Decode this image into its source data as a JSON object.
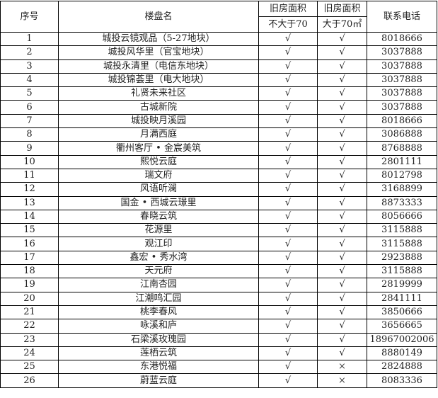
{
  "headers": {
    "index": "序号",
    "name": "楼盘名",
    "area_small_top": "旧房面积",
    "area_small_bottom": "不大于70",
    "area_large_top": "旧房面积",
    "area_large_bottom": "大于70㎡",
    "phone": "联系电话"
  },
  "rows": [
    {
      "no": "1",
      "name": "城投云镜观品（5-27地块）",
      "small": "√",
      "large": "√",
      "phone": "8018666"
    },
    {
      "no": "2",
      "name": "城投风华里（官宝地块）",
      "small": "√",
      "large": "√",
      "phone": "3037888"
    },
    {
      "no": "3",
      "name": "城投永清里（电信东地块）",
      "small": "√",
      "large": "√",
      "phone": "3037888"
    },
    {
      "no": "4",
      "name": "城投锦荟里（电大地块）",
      "small": "√",
      "large": "√",
      "phone": "3037888"
    },
    {
      "no": "5",
      "name": "礼贤未来社区",
      "small": "√",
      "large": "√",
      "phone": "3037888"
    },
    {
      "no": "6",
      "name": "古城新院",
      "small": "√",
      "large": "√",
      "phone": "3037888"
    },
    {
      "no": "7",
      "name": "城投映月溪园",
      "small": "√",
      "large": "√",
      "phone": "8018666"
    },
    {
      "no": "8",
      "name": "月满西庭",
      "small": "√",
      "large": "√",
      "phone": "3086888"
    },
    {
      "no": "9",
      "name": "衢州客厅 • 金宸美筑",
      "small": "√",
      "large": "√",
      "phone": "8768888"
    },
    {
      "no": "10",
      "name": "熙悦云庭",
      "small": "√",
      "large": "√",
      "phone": "2801111"
    },
    {
      "no": "11",
      "name": "瑞文府",
      "small": "√",
      "large": "√",
      "phone": "8012798"
    },
    {
      "no": "12",
      "name": "风语听澜",
      "small": "√",
      "large": "√",
      "phone": "3168899"
    },
    {
      "no": "13",
      "name": "国金 • 西城云璟里",
      "small": "√",
      "large": "√",
      "phone": "8873333"
    },
    {
      "no": "14",
      "name": "春晓云筑",
      "small": "√",
      "large": "√",
      "phone": "8056666"
    },
    {
      "no": "15",
      "name": "花源里",
      "small": "√",
      "large": "√",
      "phone": "3115888"
    },
    {
      "no": "16",
      "name": "观江印",
      "small": "√",
      "large": "√",
      "phone": "3115888"
    },
    {
      "no": "17",
      "name": "鑫宏 • 秀水湾",
      "small": "√",
      "large": "√",
      "phone": "2923888"
    },
    {
      "no": "18",
      "name": "天元府",
      "small": "√",
      "large": "√",
      "phone": "3115888"
    },
    {
      "no": "19",
      "name": "江南杏园",
      "small": "√",
      "large": "√",
      "phone": "2819999"
    },
    {
      "no": "20",
      "name": "江潮鸣汇园",
      "small": "√",
      "large": "√",
      "phone": "2841111"
    },
    {
      "no": "21",
      "name": "桃李春风",
      "small": "√",
      "large": "√",
      "phone": "3850666"
    },
    {
      "no": "22",
      "name": "咏溪和庐",
      "small": "√",
      "large": "√",
      "phone": "3656665"
    },
    {
      "no": "23",
      "name": "石梁溪玫瑰园",
      "small": "√",
      "large": "√",
      "phone": "18967002006"
    },
    {
      "no": "24",
      "name": "莲栖云筑",
      "small": "√",
      "large": "√",
      "phone": "8880149"
    },
    {
      "no": "25",
      "name": "东港悦福",
      "small": "√",
      "large": "×",
      "phone": "2824888"
    },
    {
      "no": "26",
      "name": "蔚蓝云庭",
      "small": "√",
      "large": "×",
      "phone": "8083336"
    }
  ]
}
